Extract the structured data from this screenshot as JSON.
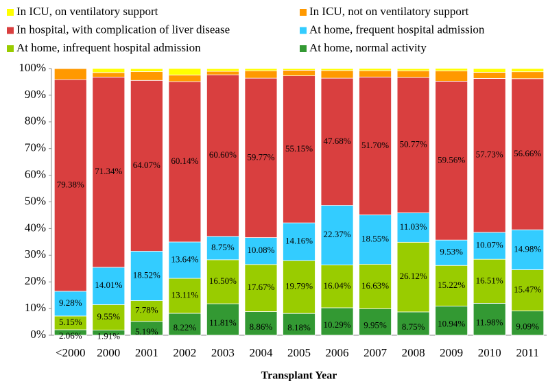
{
  "chart_data": {
    "type": "stacked-bar",
    "x_label": "Transplant Year",
    "categories": [
      "<2000",
      "2000",
      "2001",
      "2002",
      "2003",
      "2004",
      "2005",
      "2006",
      "2007",
      "2008",
      "2009",
      "2010",
      "2011"
    ],
    "series": [
      {
        "name": "At home, normal activity",
        "color": "#339933",
        "values": [
          2.06,
          1.91,
          5.19,
          8.22,
          11.81,
          8.86,
          8.18,
          10.29,
          9.95,
          8.75,
          10.94,
          11.98,
          9.09
        ],
        "value_labels": [
          "2.06%",
          "1.91%",
          "5.19%",
          "8.22%",
          "11.81%",
          "8.86%",
          "8.18%",
          "10.29%",
          "9.95%",
          "8.75%",
          "10.94%",
          "11.98%",
          "9.09%"
        ]
      },
      {
        "name": "At home, infrequent hospital admission",
        "color": "#99cc00",
        "values": [
          5.15,
          9.55,
          7.78,
          13.11,
          16.5,
          17.67,
          19.79,
          16.04,
          16.63,
          26.12,
          15.22,
          16.51,
          15.47
        ],
        "value_labels": [
          "5.15%",
          "9.55%",
          "7.78%",
          "13.11%",
          "16.50%",
          "17.67%",
          "19.79%",
          "16.04%",
          "16.63%",
          "26.12%",
          "15.22%",
          "16.51%",
          "15.47%"
        ]
      },
      {
        "name": "At home, frequent hospital admission",
        "color": "#33ccff",
        "values": [
          9.28,
          14.01,
          18.52,
          13.64,
          8.75,
          10.08,
          14.16,
          22.37,
          18.55,
          11.03,
          9.53,
          10.07,
          14.98
        ],
        "value_labels": [
          "9.28%",
          "14.01%",
          "18.52%",
          "13.64%",
          "8.75%",
          "10.08%",
          "14.16%",
          "22.37%",
          "18.55%",
          "11.03%",
          "9.53%",
          "10.07%",
          "14.98%"
        ]
      },
      {
        "name": "In hospital, with complication of liver disease",
        "color": "#d93f3f",
        "values": [
          79.38,
          71.34,
          64.07,
          60.14,
          60.6,
          59.77,
          55.15,
          47.68,
          51.7,
          50.77,
          59.56,
          57.73,
          56.66
        ],
        "value_labels": [
          "79.38%",
          "71.34%",
          "64.07%",
          "60.14%",
          "60.60%",
          "59.77%",
          "55.15%",
          "47.68%",
          "51.70%",
          "50.77%",
          "59.56%",
          "57.73%",
          "56.66%"
        ]
      },
      {
        "name": "In ICU, not on ventilatory support",
        "color": "#ff9900",
        "values": [
          4.1,
          1.7,
          3.3,
          2.5,
          1.3,
          2.8,
          2.1,
          2.9,
          2.4,
          2.5,
          3.9,
          2.3,
          2.6
        ]
      },
      {
        "name": "In ICU, on ventilatory support",
        "color": "#ffff00",
        "values": [
          0,
          1.5,
          1.1,
          2.4,
          1.0,
          0.8,
          0.6,
          0.7,
          0.8,
          0.8,
          0.9,
          1.4,
          1.2
        ]
      }
    ],
    "ylim": [
      0,
      100
    ],
    "yticks": [
      {
        "value": 0,
        "label": "0%"
      },
      {
        "value": 10,
        "label": "10%"
      },
      {
        "value": 20,
        "label": "20%"
      },
      {
        "value": 30,
        "label": "30%"
      },
      {
        "value": 40,
        "label": "40%"
      },
      {
        "value": 50,
        "label": "50%"
      },
      {
        "value": 60,
        "label": "60%"
      },
      {
        "value": 70,
        "label": "70%"
      },
      {
        "value": 80,
        "label": "80%"
      },
      {
        "value": 90,
        "label": "90%"
      },
      {
        "value": 100,
        "label": "100%"
      }
    ]
  }
}
